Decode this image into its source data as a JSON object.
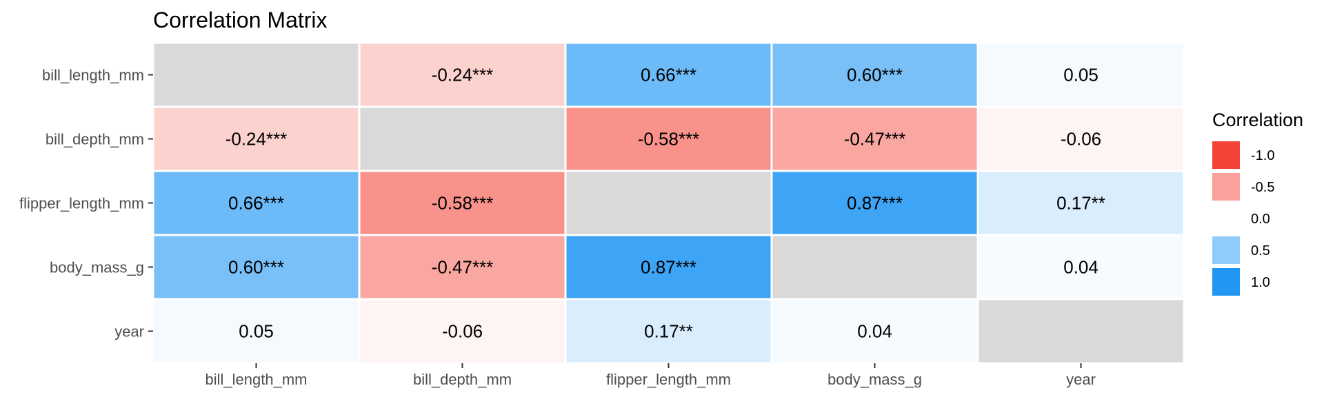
{
  "chart_data": {
    "type": "heatmap",
    "title": "Correlation Matrix",
    "variables": [
      "bill_length_mm",
      "bill_depth_mm",
      "flipper_length_mm",
      "body_mass_g",
      "year"
    ],
    "values": [
      [
        null,
        -0.24,
        0.66,
        0.6,
        0.05
      ],
      [
        -0.24,
        null,
        -0.58,
        -0.47,
        -0.06
      ],
      [
        0.66,
        -0.58,
        null,
        0.87,
        0.17
      ],
      [
        0.6,
        -0.47,
        0.87,
        null,
        0.04
      ],
      [
        0.05,
        -0.06,
        0.17,
        0.04,
        null
      ]
    ],
    "labels": [
      [
        "",
        "-0.24***",
        "0.66***",
        "0.60***",
        "0.05"
      ],
      [
        "-0.24***",
        "",
        "-0.58***",
        "-0.47***",
        "-0.06"
      ],
      [
        "0.66***",
        "-0.58***",
        "",
        "0.87***",
        "0.17**"
      ],
      [
        "0.60***",
        "-0.47***",
        "0.87***",
        "",
        "0.04"
      ],
      [
        "0.05",
        "-0.06",
        "0.17**",
        "0.04",
        ""
      ]
    ],
    "diagonal_color": "#d9d9d9",
    "scale": {
      "low_color": "#f44336",
      "mid_color": "#ffffff",
      "high_color": "#2196f3",
      "limits": [
        -1,
        1
      ]
    },
    "legend": {
      "title": "Correlation",
      "position": "right",
      "entries": [
        {
          "value": -1.0,
          "label": "-1.0"
        },
        {
          "value": -0.5,
          "label": "-0.5"
        },
        {
          "value": 0.0,
          "label": "0.0"
        },
        {
          "value": 0.5,
          "label": "0.5"
        },
        {
          "value": 1.0,
          "label": "1.0"
        }
      ]
    },
    "grid": false
  }
}
